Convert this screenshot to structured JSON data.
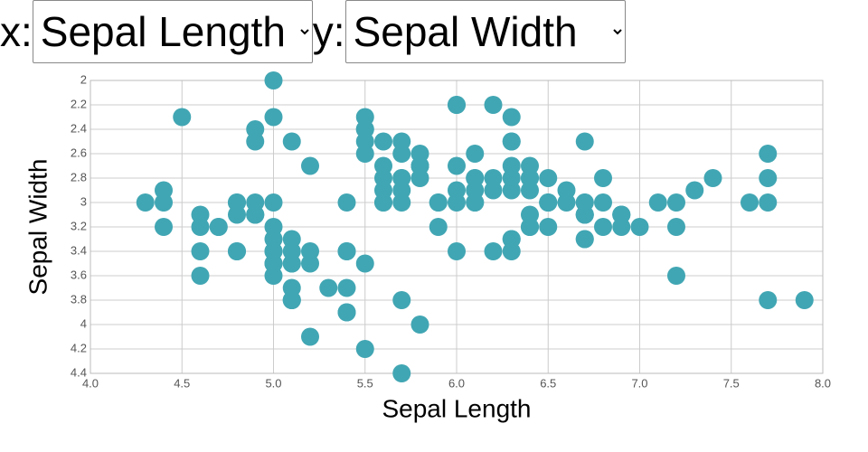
{
  "controls": {
    "x_label": "x:",
    "x_selected": "Sepal Length",
    "y_label": "y:",
    "y_selected": "Sepal Width"
  },
  "chart_data": {
    "type": "scatter",
    "x_label": "Sepal Length",
    "y_label": "Sepal Width",
    "color": "#41a6b3",
    "grid": true,
    "xlim": [
      4,
      8
    ],
    "ylim": [
      4.4,
      2
    ],
    "xticks": [
      {
        "value": 4,
        "label": "4.0"
      },
      4.5,
      {
        "value": 5,
        "label": "5.0"
      },
      5.5,
      {
        "value": 6,
        "label": "6.0"
      },
      6.5,
      {
        "value": 7,
        "label": "7.0"
      },
      7.5,
      {
        "value": 8,
        "label": "8.0"
      }
    ],
    "yticks": [
      2,
      2.2,
      2.4,
      2.6,
      2.8,
      3,
      3.2,
      3.4,
      3.6,
      3.8,
      4,
      4.2,
      4.4
    ],
    "x": [
      5.1,
      4.9,
      4.7,
      4.6,
      5.0,
      5.4,
      4.6,
      5.0,
      4.4,
      4.9,
      5.4,
      4.8,
      4.8,
      4.3,
      5.8,
      5.7,
      5.4,
      5.1,
      5.7,
      5.1,
      5.4,
      5.1,
      4.6,
      5.1,
      4.8,
      5.0,
      5.0,
      5.2,
      5.2,
      4.7,
      4.8,
      5.4,
      5.2,
      5.5,
      4.9,
      5.0,
      5.5,
      4.9,
      4.4,
      5.1,
      5.0,
      4.5,
      4.4,
      5.0,
      5.1,
      4.8,
      5.1,
      4.6,
      5.3,
      5.0,
      7.0,
      6.4,
      6.9,
      5.5,
      6.5,
      5.7,
      6.3,
      4.9,
      6.6,
      5.2,
      5.0,
      5.9,
      6.0,
      6.1,
      5.6,
      6.7,
      5.6,
      5.8,
      6.2,
      5.6,
      5.9,
      6.1,
      6.3,
      6.1,
      6.4,
      6.6,
      6.8,
      6.7,
      6.0,
      5.7,
      5.5,
      5.5,
      5.8,
      6.0,
      5.4,
      6.0,
      6.7,
      6.3,
      5.6,
      5.5,
      5.5,
      6.1,
      5.8,
      5.0,
      5.6,
      5.7,
      5.7,
      6.2,
      5.1,
      5.7,
      6.3,
      5.8,
      7.1,
      6.3,
      6.5,
      7.6,
      4.9,
      7.3,
      6.7,
      7.2,
      6.5,
      6.4,
      6.8,
      5.7,
      5.8,
      6.4,
      6.5,
      7.7,
      7.7,
      6.0,
      6.9,
      5.6,
      7.7,
      6.3,
      6.7,
      7.2,
      6.2,
      6.1,
      6.4,
      7.2,
      7.4,
      7.9,
      6.4,
      6.3,
      6.1,
      7.7,
      6.3,
      6.4,
      6.0,
      6.9,
      6.7,
      6.9,
      5.8,
      6.8,
      6.7,
      6.7,
      6.3,
      6.5,
      6.2,
      5.9
    ],
    "y": [
      3.5,
      3.0,
      3.2,
      3.1,
      3.6,
      3.9,
      3.4,
      3.4,
      2.9,
      3.1,
      3.7,
      3.4,
      3.0,
      3.0,
      4.0,
      4.4,
      3.9,
      3.5,
      3.8,
      3.8,
      3.4,
      3.7,
      3.6,
      3.3,
      3.4,
      3.0,
      3.4,
      3.5,
      3.4,
      3.2,
      3.1,
      3.4,
      4.1,
      4.2,
      3.1,
      3.2,
      3.5,
      3.1,
      3.0,
      3.4,
      3.5,
      2.3,
      3.2,
      3.5,
      3.8,
      3.0,
      3.8,
      3.2,
      3.7,
      3.3,
      3.2,
      3.2,
      3.1,
      2.3,
      2.8,
      2.8,
      3.3,
      2.4,
      2.9,
      2.7,
      2.0,
      3.0,
      2.2,
      2.9,
      2.9,
      3.1,
      3.0,
      2.7,
      2.2,
      2.5,
      3.2,
      2.8,
      2.5,
      2.8,
      2.9,
      3.0,
      2.8,
      3.0,
      2.9,
      2.6,
      2.4,
      2.4,
      2.7,
      2.7,
      3.0,
      3.4,
      3.1,
      2.3,
      3.0,
      2.5,
      2.6,
      3.0,
      2.6,
      2.3,
      2.7,
      3.0,
      2.9,
      2.9,
      2.5,
      2.8,
      3.3,
      2.7,
      3.0,
      2.9,
      3.0,
      3.0,
      2.5,
      2.9,
      2.5,
      3.6,
      3.2,
      2.7,
      3.0,
      2.5,
      2.8,
      3.2,
      3.0,
      3.8,
      2.6,
      2.2,
      3.2,
      2.8,
      2.8,
      2.7,
      3.3,
      3.2,
      2.8,
      3.0,
      2.8,
      3.0,
      2.8,
      3.8,
      2.8,
      2.8,
      2.6,
      3.0,
      3.4,
      3.1,
      3.0,
      3.1,
      3.1,
      3.1,
      2.7,
      3.2,
      3.3,
      3.0,
      2.5,
      3.0,
      3.4,
      3.0
    ]
  }
}
